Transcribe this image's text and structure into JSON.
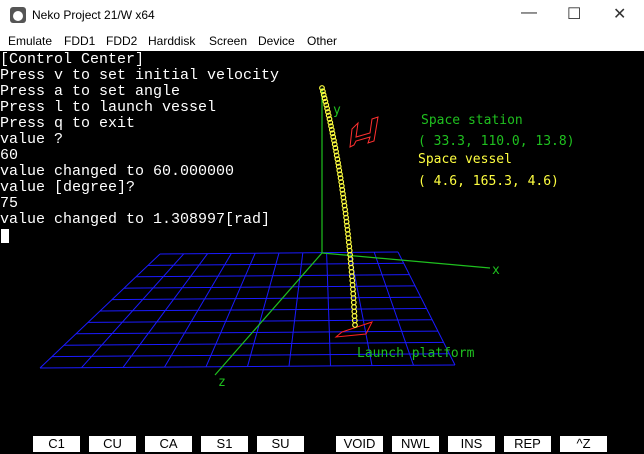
{
  "window": {
    "title": "Neko Project 21/W x64"
  },
  "menu": [
    "Emulate",
    "FDD1",
    "FDD2",
    "Harddisk",
    "Screen",
    "Device",
    "Other"
  ],
  "console": [
    "[Control Center]",
    "Press v to set initial velocity",
    "Press a to set angle",
    "Press l to launch vessel",
    "Press q to exit",
    "value ?",
    "60",
    "value changed to 60.000000",
    "value [degree]?",
    "75",
    "value changed to 1.308997[rad]"
  ],
  "scene": {
    "y_axis": "y",
    "x_axis": "x",
    "z_axis": "z",
    "station_label": "Space station",
    "station_coords": "( 33.3, 110.0, 13.8)",
    "vessel_label": "Space vessel",
    "vessel_coords": "( 4.6, 165.3, 4.6)",
    "platform_label": "Launch platform"
  },
  "function_keys": [
    "C1",
    "CU",
    "CA",
    "S1",
    "SU",
    "VOID",
    "NWL",
    "INS",
    "REP",
    "^Z"
  ]
}
